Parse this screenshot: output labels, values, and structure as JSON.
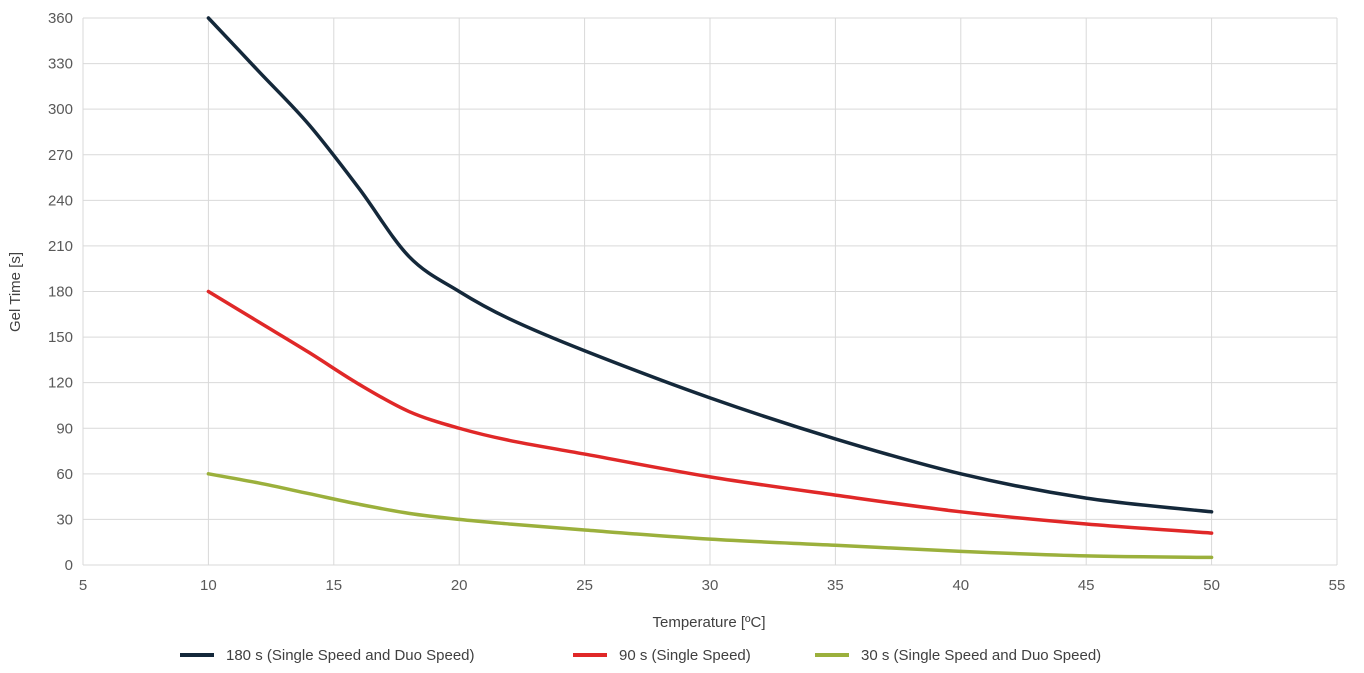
{
  "chart_data": {
    "type": "line",
    "title": "",
    "xlabel": "Temperature [ºC]",
    "ylabel": "Gel Time [s]",
    "xlim": [
      5,
      55
    ],
    "ylim": [
      0,
      360
    ],
    "x_ticks": [
      5,
      10,
      15,
      20,
      25,
      30,
      35,
      40,
      45,
      50,
      55
    ],
    "y_ticks": [
      0,
      30,
      60,
      90,
      120,
      150,
      180,
      210,
      240,
      270,
      300,
      330,
      360
    ],
    "grid": true,
    "legend_position": "bottom",
    "series": [
      {
        "name": "180 s (Single Speed and Duo Speed)",
        "color": "#14283a",
        "x": [
          10,
          12,
          14,
          16,
          18,
          20,
          22,
          25,
          30,
          35,
          40,
          45,
          50
        ],
        "y": [
          360,
          325,
          290,
          248,
          203,
          180,
          162,
          141,
          110,
          83,
          60,
          44,
          35
        ]
      },
      {
        "name": "90 s (Single Speed)",
        "color": "#e02828",
        "x": [
          10,
          12,
          14,
          16,
          18,
          20,
          22,
          25,
          30,
          35,
          40,
          45,
          50
        ],
        "y": [
          180,
          160,
          140,
          119,
          101,
          90,
          82,
          73,
          58,
          46,
          35,
          27,
          21
        ]
      },
      {
        "name": "30 s (Single Speed and Duo Speed)",
        "color": "#9bb03c",
        "x": [
          10,
          12,
          14,
          16,
          18,
          20,
          22,
          25,
          30,
          35,
          40,
          45,
          50
        ],
        "y": [
          60,
          54,
          47,
          40,
          34,
          30,
          27,
          23,
          17,
          13,
          9,
          6,
          5
        ]
      }
    ]
  }
}
